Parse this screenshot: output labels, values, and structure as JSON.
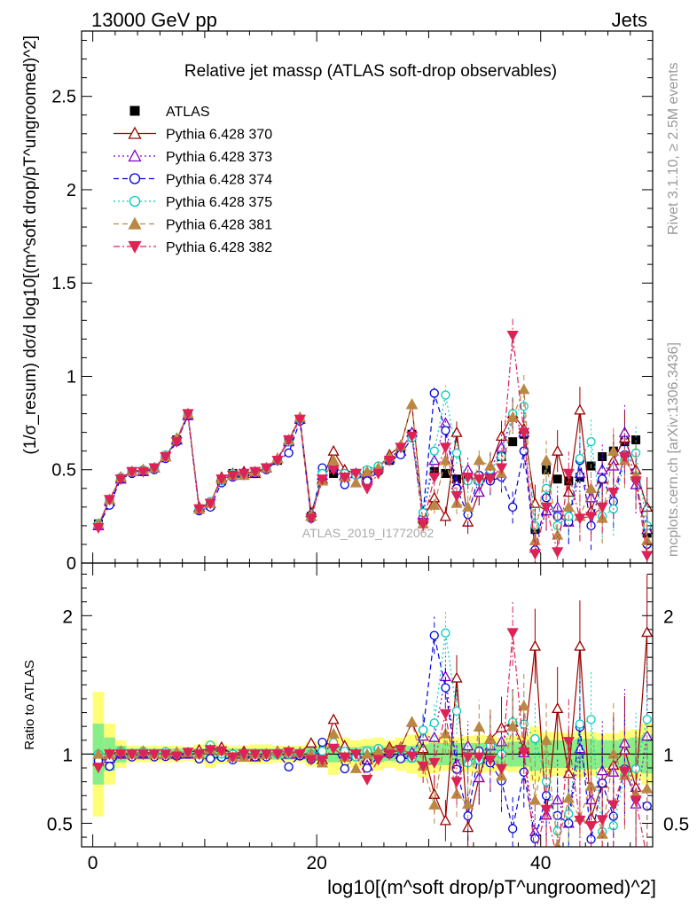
{
  "header": {
    "energy_label": "13000 GeV pp",
    "category_label": "Jets"
  },
  "side_labels": {
    "rivet_version": "Rivet 3.1.10, ≥ 2.5M events",
    "source": "mcplots.cern.ch [arXiv:1306.3436]"
  },
  "chart_data": [
    {
      "type": "line",
      "panel": "main",
      "title": "Relative jet massρ (ATLAS soft-drop observables)",
      "ylabel": "(1/σ_resum) dσ/d log10[(m^soft drop/pT^ungroomed)^2]",
      "xlim": [
        -1,
        50
      ],
      "ylim": [
        0,
        2.85
      ],
      "yticks": [
        0,
        0.5,
        1,
        1.5,
        2,
        2.5
      ],
      "ytick_labels": [
        "0",
        "0.5",
        "1",
        "1.5",
        "2",
        "2.5"
      ],
      "watermark": "ATLAS_2019_I1772062",
      "legend_position": "top-left",
      "x": [
        0.5,
        1.5,
        2.5,
        3.5,
        4.5,
        5.5,
        6.5,
        7.5,
        8.5,
        9.5,
        10.5,
        11.5,
        12.5,
        13.5,
        14.5,
        15.5,
        16.5,
        17.5,
        18.5,
        19.5,
        20.5,
        21.5,
        22.5,
        23.5,
        24.5,
        25.5,
        26.5,
        27.5,
        28.5,
        29.5,
        30.5,
        31.5,
        32.5,
        33.5,
        34.5,
        35.5,
        36.5,
        37.5,
        38.5,
        39.5,
        40.5,
        41.5,
        42.5,
        43.5,
        44.5,
        45.5,
        46.5,
        47.5,
        48.5,
        49.5
      ],
      "series": [
        {
          "name": "ATLAS",
          "color": "#000000",
          "marker": "square-filled",
          "values": [
            0.21,
            0.34,
            0.45,
            0.49,
            0.49,
            0.51,
            0.57,
            0.66,
            0.79,
            0.29,
            0.31,
            0.44,
            0.48,
            0.48,
            0.49,
            0.51,
            0.55,
            0.65,
            0.77,
            0.25,
            0.47,
            0.48,
            0.47,
            0.48,
            0.49,
            0.5,
            0.55,
            0.6,
            0.69,
            0.23,
            0.49,
            0.48,
            0.45,
            0.47,
            0.46,
            0.47,
            0.57,
            0.65,
            0.69,
            0.18,
            0.5,
            0.45,
            0.44,
            0.46,
            0.52,
            0.57,
            0.6,
            0.65,
            0.66,
            0.16
          ]
        },
        {
          "name": "Pythia 6.428 370",
          "color": "#990000",
          "marker": "triangle-open",
          "dash": "solid",
          "values": [
            0.2,
            0.34,
            0.46,
            0.49,
            0.5,
            0.51,
            0.57,
            0.66,
            0.8,
            0.3,
            0.32,
            0.46,
            0.48,
            0.49,
            0.48,
            0.51,
            0.56,
            0.66,
            0.78,
            0.27,
            0.45,
            0.6,
            0.5,
            0.48,
            0.47,
            0.51,
            0.58,
            0.63,
            0.85,
            0.24,
            0.35,
            0.25,
            0.7,
            0.22,
            0.38,
            0.52,
            0.68,
            0.8,
            0.72,
            0.32,
            0.28,
            0.6,
            0.38,
            0.82,
            0.28,
            0.45,
            0.55,
            0.67,
            0.5,
            0.3
          ]
        },
        {
          "name": "Pythia 6.428 373",
          "color": "#8000cc",
          "marker": "triangle-open",
          "dash": "dotted",
          "values": [
            0.2,
            0.33,
            0.45,
            0.49,
            0.49,
            0.51,
            0.57,
            0.66,
            0.79,
            0.29,
            0.32,
            0.45,
            0.47,
            0.48,
            0.49,
            0.51,
            0.56,
            0.65,
            0.77,
            0.25,
            0.47,
            0.52,
            0.47,
            0.48,
            0.45,
            0.51,
            0.56,
            0.6,
            0.7,
            0.26,
            0.55,
            0.75,
            0.42,
            0.5,
            0.38,
            0.5,
            0.62,
            0.78,
            0.7,
            0.08,
            0.28,
            0.3,
            0.22,
            0.48,
            0.35,
            0.5,
            0.52,
            0.7,
            0.42,
            0.18
          ]
        },
        {
          "name": "Pythia 6.428 374",
          "color": "#0000dd",
          "marker": "circle-open",
          "dash": "dashed",
          "values": [
            0.2,
            0.31,
            0.45,
            0.48,
            0.49,
            0.5,
            0.56,
            0.65,
            0.79,
            0.28,
            0.3,
            0.43,
            0.46,
            0.47,
            0.48,
            0.5,
            0.55,
            0.59,
            0.76,
            0.24,
            0.51,
            0.51,
            0.42,
            0.48,
            0.44,
            0.49,
            0.55,
            0.58,
            0.67,
            0.27,
            0.91,
            0.71,
            0.4,
            0.26,
            0.47,
            0.44,
            0.46,
            0.3,
            0.6,
            0.07,
            0.35,
            0.25,
            0.22,
            0.55,
            0.2,
            0.45,
            0.33,
            0.58,
            0.45,
            0.1
          ]
        },
        {
          "name": "Pythia 6.428 375",
          "color": "#00ccbb",
          "marker": "circle-open",
          "dash": "dotted",
          "values": [
            0.21,
            0.34,
            0.46,
            0.49,
            0.5,
            0.51,
            0.58,
            0.66,
            0.8,
            0.29,
            0.33,
            0.44,
            0.48,
            0.48,
            0.49,
            0.51,
            0.55,
            0.65,
            0.77,
            0.25,
            0.48,
            0.52,
            0.48,
            0.47,
            0.5,
            0.52,
            0.56,
            0.62,
            0.67,
            0.27,
            0.6,
            0.9,
            0.59,
            0.44,
            0.44,
            0.5,
            0.57,
            0.8,
            0.84,
            0.2,
            0.4,
            0.2,
            0.25,
            0.56,
            0.65,
            0.25,
            0.29,
            0.55,
            0.59,
            0.2
          ]
        },
        {
          "name": "Pythia 6.428 381",
          "color": "#bb8844",
          "marker": "triangle-filled",
          "dash": "dashed",
          "values": [
            0.21,
            0.34,
            0.46,
            0.49,
            0.5,
            0.51,
            0.57,
            0.67,
            0.8,
            0.29,
            0.32,
            0.45,
            0.47,
            0.47,
            0.49,
            0.51,
            0.56,
            0.66,
            0.78,
            0.25,
            0.44,
            0.55,
            0.46,
            0.43,
            0.49,
            0.51,
            0.57,
            0.63,
            0.85,
            0.21,
            0.31,
            0.55,
            0.32,
            0.3,
            0.55,
            0.52,
            0.48,
            0.78,
            0.93,
            0.12,
            0.55,
            0.15,
            0.3,
            0.25,
            0.4,
            0.24,
            0.6,
            0.55,
            0.47,
            0.12
          ]
        },
        {
          "name": "Pythia 6.428 382",
          "color": "#dd2255",
          "marker": "triangle-down-filled",
          "dash": "dashdot",
          "values": [
            0.19,
            0.34,
            0.45,
            0.49,
            0.49,
            0.51,
            0.57,
            0.65,
            0.8,
            0.29,
            0.32,
            0.45,
            0.47,
            0.48,
            0.49,
            0.51,
            0.55,
            0.66,
            0.77,
            0.24,
            0.45,
            0.5,
            0.46,
            0.48,
            0.4,
            0.48,
            0.55,
            0.62,
            0.68,
            0.21,
            0.46,
            0.62,
            0.36,
            0.46,
            0.45,
            0.45,
            0.51,
            1.22,
            0.7,
            0.05,
            0.3,
            0.06,
            0.48,
            0.24,
            0.25,
            0.3,
            0.38,
            0.57,
            0.44,
            0.04
          ]
        }
      ]
    },
    {
      "type": "line",
      "panel": "ratio",
      "ylabel": "Ratio to ATLAS",
      "xlabel": "log10[(m^soft drop/pT^ungroomed)^2]",
      "xlim": [
        -1,
        50
      ],
      "ylim": [
        0.33,
        2.38
      ],
      "xticks": [
        0,
        20,
        40
      ],
      "xtick_labels": [
        "0",
        "20",
        "40"
      ],
      "yticks": [
        0.5,
        1,
        2
      ],
      "ytick_labels": [
        "0.5",
        "1",
        "2"
      ],
      "ratios": {
        "Pythia 6.428 370": [
          0.95,
          1.0,
          1.02,
          1.0,
          1.02,
          1.0,
          1.0,
          1.0,
          1.01,
          1.03,
          1.03,
          1.05,
          1.0,
          1.02,
          0.98,
          1.0,
          1.02,
          1.02,
          1.01,
          1.08,
          0.96,
          1.25,
          1.06,
          1.0,
          0.96,
          1.02,
          1.05,
          1.05,
          1.23,
          1.04,
          0.71,
          0.52,
          1.55,
          0.47,
          0.83,
          1.11,
          1.19,
          1.23,
          1.04,
          1.78,
          0.56,
          1.33,
          0.86,
          1.78,
          0.54,
          0.79,
          0.92,
          1.03,
          0.76,
          1.88
        ],
        "Pythia 6.428 373": [
          0.95,
          0.97,
          1.0,
          1.0,
          1.0,
          1.0,
          1.0,
          1.0,
          1.0,
          1.0,
          1.03,
          1.02,
          0.98,
          1.0,
          1.0,
          1.0,
          1.02,
          1.0,
          1.0,
          1.0,
          1.0,
          1.08,
          1.0,
          1.0,
          0.92,
          1.02,
          1.02,
          1.0,
          1.01,
          1.13,
          1.12,
          1.56,
          0.93,
          1.06,
          0.83,
          1.06,
          1.09,
          1.2,
          1.01,
          0.44,
          0.56,
          0.67,
          0.5,
          1.04,
          0.67,
          0.88,
          0.87,
          1.08,
          0.64,
          1.13
        ]
      },
      "bands": {
        "green_half_width": [
          0.22,
          0.12,
          0.06,
          0.04,
          0.04,
          0.04,
          0.04,
          0.04,
          0.03,
          0.04,
          0.05,
          0.04,
          0.04,
          0.04,
          0.04,
          0.04,
          0.04,
          0.04,
          0.04,
          0.05,
          0.05,
          0.06,
          0.05,
          0.05,
          0.06,
          0.06,
          0.05,
          0.06,
          0.06,
          0.07,
          0.08,
          0.08,
          0.08,
          0.08,
          0.08,
          0.08,
          0.08,
          0.09,
          0.09,
          0.12,
          0.1,
          0.1,
          0.1,
          0.11,
          0.11,
          0.1,
          0.1,
          0.11,
          0.12,
          0.14
        ],
        "yellow_half_width": [
          0.45,
          0.22,
          0.1,
          0.06,
          0.06,
          0.06,
          0.06,
          0.06,
          0.05,
          0.07,
          0.1,
          0.07,
          0.06,
          0.06,
          0.07,
          0.07,
          0.06,
          0.06,
          0.06,
          0.09,
          0.09,
          0.15,
          0.12,
          0.1,
          0.11,
          0.12,
          0.1,
          0.12,
          0.14,
          0.17,
          0.14,
          0.12,
          0.12,
          0.13,
          0.14,
          0.13,
          0.12,
          0.13,
          0.14,
          0.2,
          0.16,
          0.16,
          0.15,
          0.17,
          0.16,
          0.15,
          0.15,
          0.17,
          0.18,
          0.22
        ]
      }
    }
  ]
}
